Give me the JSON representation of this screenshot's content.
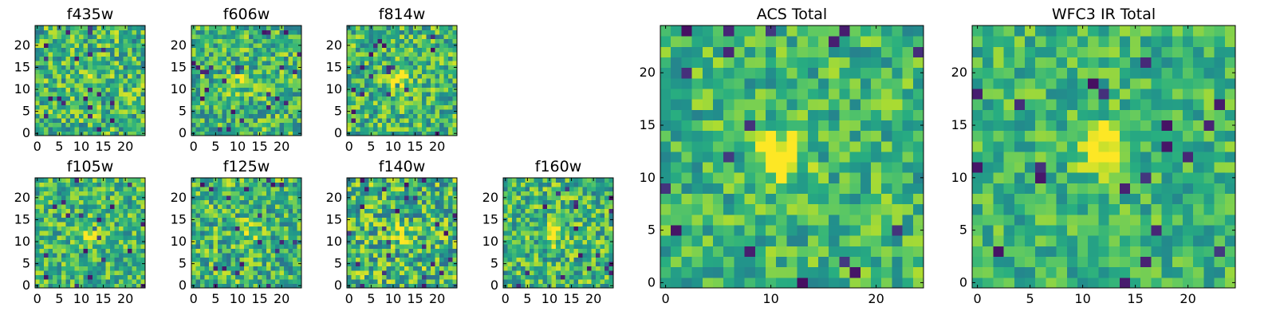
{
  "chart_data": [
    {
      "type": "heatmap",
      "title": "f435w",
      "xticks": [
        0,
        5,
        10,
        15,
        20
      ],
      "yticks": [
        0,
        5,
        10,
        15,
        20
      ],
      "xlim": [
        0,
        24
      ],
      "ylim": [
        0,
        24
      ],
      "grid_size": 25,
      "colormap": "viridis",
      "source_center": [
        12,
        13
      ],
      "source_strength": 0.1,
      "noise_amplitude": 0.52,
      "seed": 11
    },
    {
      "type": "heatmap",
      "title": "f606w",
      "xticks": [
        0,
        5,
        10,
        15,
        20
      ],
      "yticks": [
        0,
        5,
        10,
        15,
        20
      ],
      "xlim": [
        0,
        24
      ],
      "ylim": [
        0,
        24
      ],
      "grid_size": 25,
      "colormap": "viridis",
      "source_center": [
        11,
        12
      ],
      "source_strength": 0.25,
      "noise_amplitude": 0.5,
      "seed": 23
    },
    {
      "type": "heatmap",
      "title": "f814w",
      "xticks": [
        0,
        5,
        10,
        15,
        20
      ],
      "yticks": [
        0,
        5,
        10,
        15,
        20
      ],
      "xlim": [
        0,
        24
      ],
      "ylim": [
        0,
        24
      ],
      "grid_size": 25,
      "colormap": "viridis",
      "source_center": [
        11,
        12
      ],
      "source_strength": 0.45,
      "noise_amplitude": 0.5,
      "seed": 37
    },
    {
      "type": "heatmap",
      "title": "f105w",
      "xticks": [
        0,
        5,
        10,
        15,
        20
      ],
      "yticks": [
        0,
        5,
        10,
        15,
        20
      ],
      "xlim": [
        0,
        24
      ],
      "ylim": [
        0,
        24
      ],
      "grid_size": 25,
      "colormap": "viridis",
      "source_center": [
        12,
        12
      ],
      "source_strength": 0.25,
      "noise_amplitude": 0.46,
      "seed": 41
    },
    {
      "type": "heatmap",
      "title": "f125w",
      "xticks": [
        0,
        5,
        10,
        15,
        20
      ],
      "yticks": [
        0,
        5,
        10,
        15,
        20
      ],
      "xlim": [
        0,
        24
      ],
      "ylim": [
        0,
        24
      ],
      "grid_size": 25,
      "colormap": "viridis",
      "source_center": [
        13,
        12
      ],
      "source_strength": 0.2,
      "noise_amplitude": 0.52,
      "seed": 53
    },
    {
      "type": "heatmap",
      "title": "f140w",
      "xticks": [
        0,
        5,
        10,
        15,
        20
      ],
      "yticks": [
        0,
        5,
        10,
        15,
        20
      ],
      "xlim": [
        0,
        24
      ],
      "ylim": [
        0,
        24
      ],
      "grid_size": 25,
      "colormap": "viridis",
      "source_center": [
        11,
        12
      ],
      "source_strength": 0.25,
      "noise_amplitude": 0.56,
      "seed": 67
    },
    {
      "type": "heatmap",
      "title": "f160w",
      "xticks": [
        0,
        5,
        10,
        15,
        20
      ],
      "yticks": [
        0,
        5,
        10,
        15,
        20
      ],
      "xlim": [
        0,
        24
      ],
      "ylim": [
        0,
        24
      ],
      "grid_size": 25,
      "colormap": "viridis",
      "source_center": [
        11,
        12
      ],
      "source_strength": 0.4,
      "noise_amplitude": 0.5,
      "seed": 79
    },
    {
      "type": "heatmap",
      "title": "ACS Total",
      "xticks": [
        0,
        10,
        20
      ],
      "yticks": [
        0,
        5,
        10,
        15,
        20
      ],
      "xlim": [
        0,
        24
      ],
      "ylim": [
        0,
        24
      ],
      "grid_size": 25,
      "colormap": "viridis",
      "source_center": [
        11,
        12
      ],
      "source_strength": 0.45,
      "noise_amplitude": 0.4,
      "seed": 97
    },
    {
      "type": "heatmap",
      "title": "WFC3 IR Total",
      "xticks": [
        0,
        5,
        10,
        15,
        20
      ],
      "yticks": [
        0,
        5,
        10,
        15,
        20
      ],
      "xlim": [
        0,
        24
      ],
      "ylim": [
        0,
        24
      ],
      "grid_size": 25,
      "colormap": "viridis",
      "source_center": [
        12,
        13
      ],
      "source_strength": 0.45,
      "noise_amplitude": 0.36,
      "seed": 131
    }
  ]
}
